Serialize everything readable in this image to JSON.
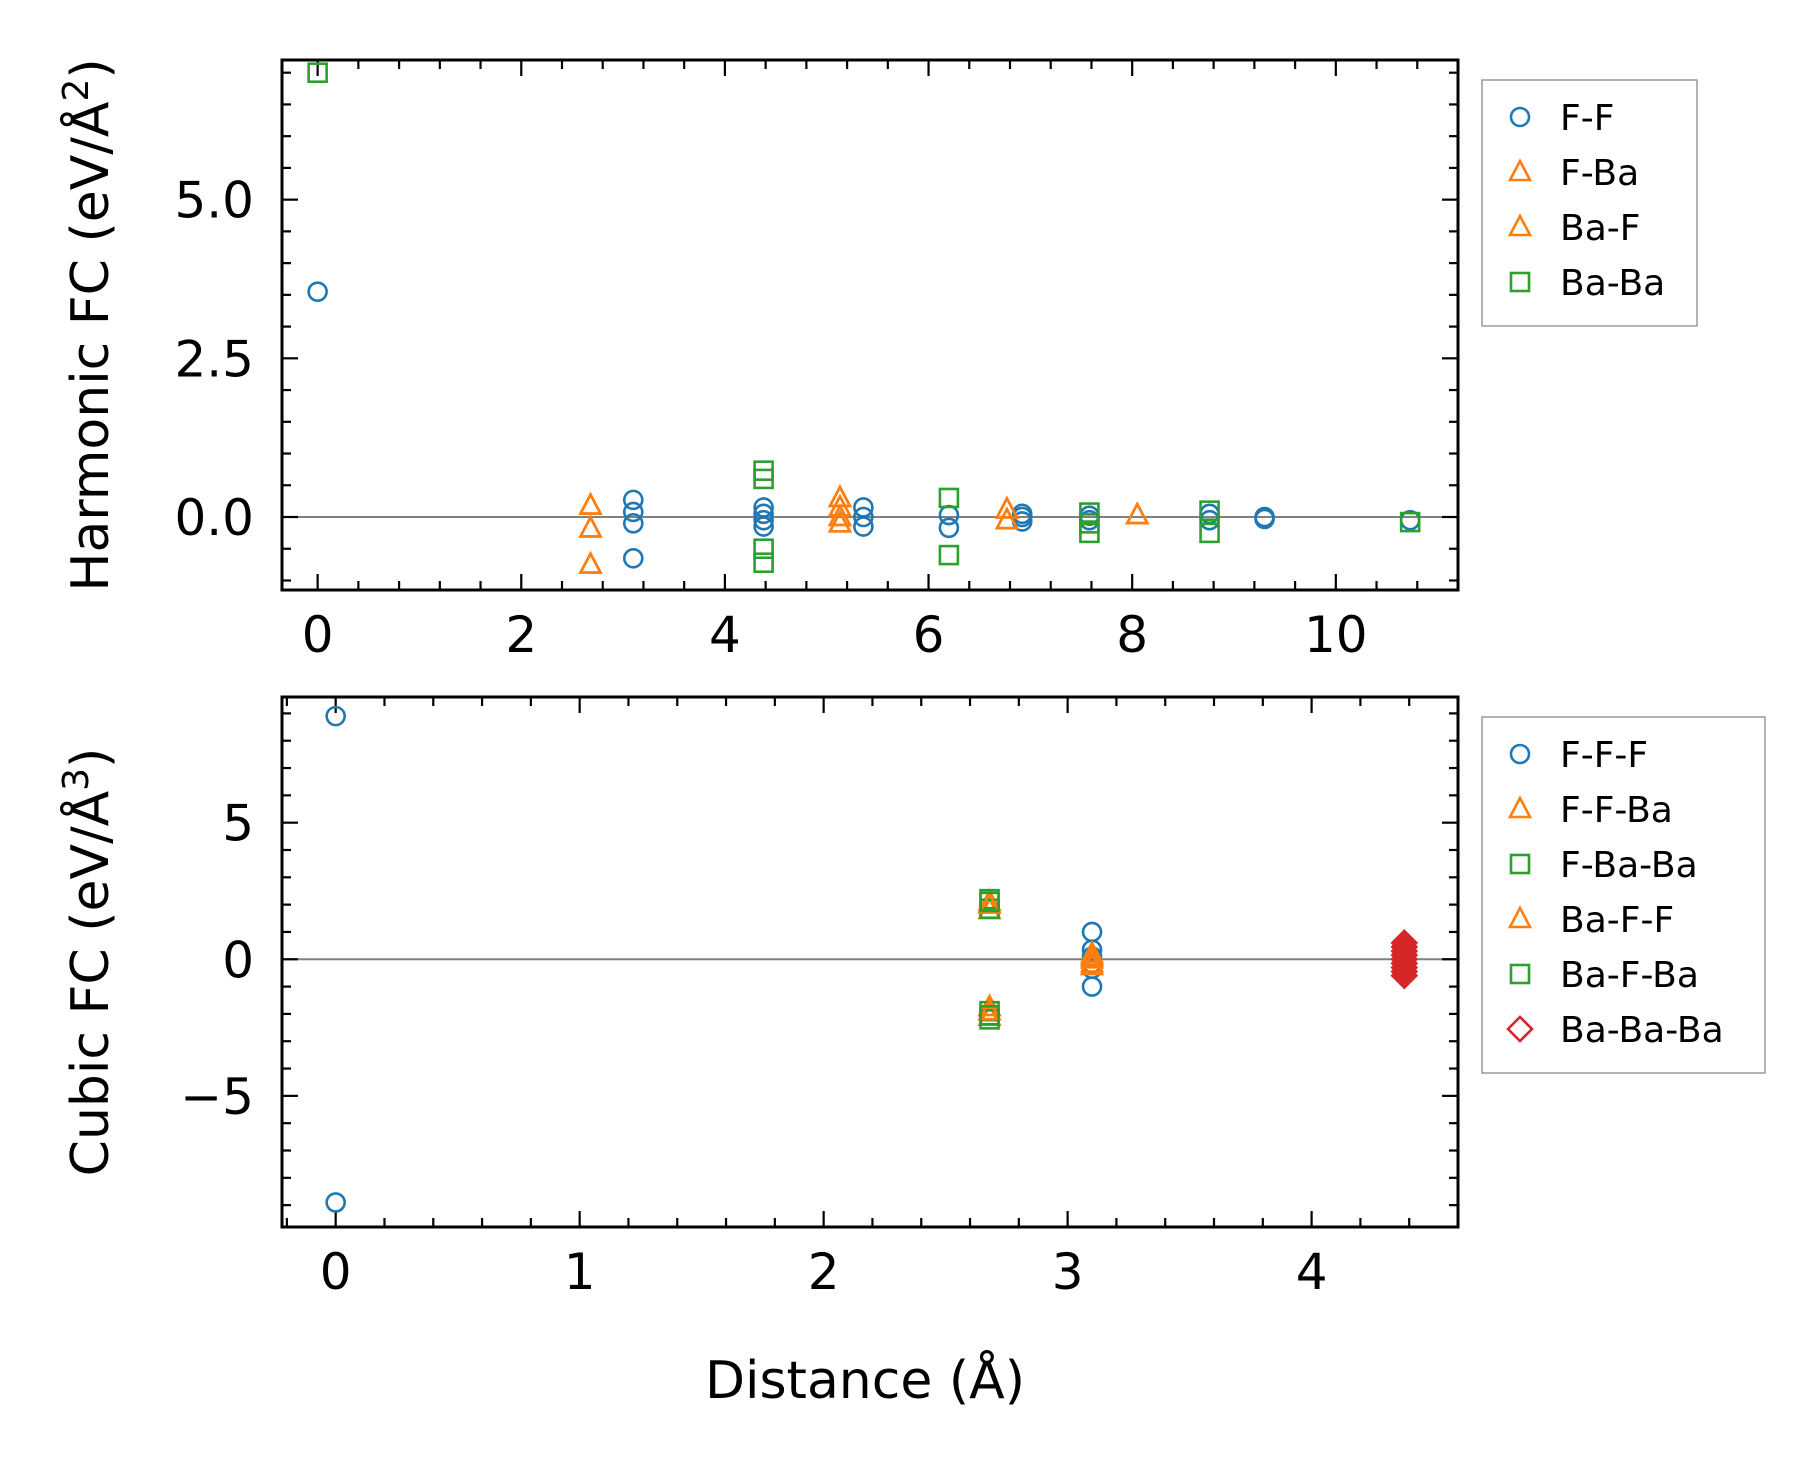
{
  "colors": {
    "blue": "#1f77b4",
    "orange": "#ff7f0e",
    "green": "#2ca02c",
    "red": "#d62728"
  },
  "figure_xlabel": "Distance (Å)",
  "chart_data": [
    {
      "type": "scatter",
      "ylabel_main": "Harmonic FC (eV/Å",
      "ylabel_sup": "2",
      "ylabel_close": ")",
      "xlim": [
        -0.35,
        11.2
      ],
      "ylim": [
        -1.15,
        7.2
      ],
      "xticks": [
        0,
        2,
        4,
        6,
        8,
        10
      ],
      "xtick_labels": [
        "0",
        "2",
        "4",
        "6",
        "8",
        "10"
      ],
      "yticks": [
        0,
        2.5,
        5
      ],
      "ytick_labels": [
        "0.0",
        "2.5",
        "5.0"
      ],
      "zero_line": true,
      "legend_position": "outside-right",
      "series": [
        {
          "name": "F-F",
          "marker": "circle",
          "color": "#1f77b4",
          "points": [
            [
              0,
              3.55
            ],
            [
              3.1,
              0.27
            ],
            [
              3.1,
              0.08
            ],
            [
              3.1,
              -0.1
            ],
            [
              3.1,
              -0.65
            ],
            [
              4.38,
              0.15
            ],
            [
              4.38,
              0.05
            ],
            [
              4.38,
              -0.05
            ],
            [
              4.38,
              -0.15
            ],
            [
              5.36,
              0.15
            ],
            [
              5.36,
              0.0
            ],
            [
              5.36,
              -0.15
            ],
            [
              6.2,
              0.03
            ],
            [
              6.2,
              -0.17
            ],
            [
              6.92,
              0.05
            ],
            [
              6.92,
              0.0
            ],
            [
              6.92,
              -0.07
            ],
            [
              7.58,
              0.02
            ],
            [
              7.58,
              -0.05
            ],
            [
              8.76,
              0.05
            ],
            [
              8.76,
              -0.05
            ],
            [
              9.3,
              0.0
            ],
            [
              9.3,
              -0.03
            ],
            [
              10.73,
              -0.05
            ]
          ]
        },
        {
          "name": "F-Ba",
          "marker": "triangle",
          "color": "#ff7f0e",
          "points": [
            [
              2.68,
              0.18
            ],
            [
              2.68,
              -0.18
            ],
            [
              2.68,
              -0.75
            ],
            [
              5.13,
              0.3
            ],
            [
              5.13,
              0.15
            ],
            [
              5.13,
              0.0
            ],
            [
              5.13,
              -0.1
            ],
            [
              6.77,
              0.12
            ],
            [
              6.77,
              -0.05
            ],
            [
              8.05,
              0.03
            ]
          ]
        },
        {
          "name": "Ba-F",
          "marker": "triangle",
          "color": "#ff7f0e",
          "points": [
            [
              2.68,
              0.18
            ],
            [
              2.68,
              -0.18
            ],
            [
              2.68,
              -0.75
            ],
            [
              5.13,
              0.3
            ],
            [
              5.13,
              0.15
            ],
            [
              5.13,
              0.0
            ],
            [
              5.13,
              -0.1
            ],
            [
              6.77,
              0.12
            ],
            [
              6.77,
              -0.05
            ],
            [
              8.05,
              0.03
            ]
          ]
        },
        {
          "name": "Ba-Ba",
          "marker": "square",
          "color": "#2ca02c",
          "points": [
            [
              0,
              7.0
            ],
            [
              4.38,
              0.73
            ],
            [
              4.38,
              0.6
            ],
            [
              4.38,
              -0.5
            ],
            [
              4.38,
              -0.72
            ],
            [
              6.2,
              0.3
            ],
            [
              6.2,
              -0.6
            ],
            [
              7.58,
              0.07
            ],
            [
              7.58,
              -0.1
            ],
            [
              7.58,
              -0.25
            ],
            [
              8.76,
              0.1
            ],
            [
              8.76,
              -0.25
            ],
            [
              10.73,
              -0.08
            ]
          ]
        }
      ]
    },
    {
      "type": "scatter",
      "ylabel_main": "Cubic FC (eV/Å",
      "ylabel_sup": "3",
      "ylabel_close": ")",
      "xlabel": "Distance (Å)",
      "xlim": [
        -0.22,
        4.6
      ],
      "ylim": [
        -9.8,
        9.6
      ],
      "xticks": [
        0,
        1,
        2,
        3,
        4
      ],
      "xtick_labels": [
        "0",
        "1",
        "2",
        "3",
        "4"
      ],
      "yticks": [
        -5,
        0,
        5
      ],
      "ytick_labels": [
        "−5",
        "0",
        "5"
      ],
      "zero_line": true,
      "legend_position": "outside-right",
      "series": [
        {
          "name": "F-F-F",
          "marker": "circle",
          "color": "#1f77b4",
          "points": [
            [
              0,
              8.9
            ],
            [
              0,
              -8.9
            ],
            [
              3.1,
              1.0
            ],
            [
              3.1,
              0.35
            ],
            [
              3.1,
              0.1
            ],
            [
              3.1,
              -0.15
            ],
            [
              3.1,
              -0.35
            ],
            [
              3.1,
              -1.0
            ]
          ]
        },
        {
          "name": "F-F-Ba",
          "marker": "triangle",
          "color": "#ff7f0e",
          "points": [
            [
              2.68,
              2.1
            ],
            [
              2.68,
              1.8
            ],
            [
              2.68,
              -1.75
            ],
            [
              2.68,
              -2.1
            ],
            [
              3.1,
              0.2
            ],
            [
              3.1,
              0.0
            ],
            [
              3.1,
              -0.25
            ]
          ]
        },
        {
          "name": "F-Ba-Ba",
          "marker": "square",
          "color": "#2ca02c",
          "points": [
            [
              2.68,
              2.2
            ],
            [
              2.68,
              1.85
            ],
            [
              2.68,
              -1.9
            ],
            [
              2.68,
              -2.2
            ]
          ]
        },
        {
          "name": "Ba-F-F",
          "marker": "triangle",
          "color": "#ff7f0e",
          "points": [
            [
              2.68,
              2.0
            ],
            [
              2.68,
              -1.9
            ],
            [
              3.1,
              0.1
            ],
            [
              3.1,
              -0.15
            ]
          ]
        },
        {
          "name": "Ba-F-Ba",
          "marker": "square",
          "color": "#2ca02c",
          "points": [
            [
              2.68,
              2.1
            ],
            [
              2.68,
              -2.05
            ]
          ]
        },
        {
          "name": "Ba-Ba-Ba",
          "marker": "diamond",
          "color": "#d62728",
          "filled_look": true,
          "points": [
            [
              4.38,
              0.6
            ],
            [
              4.38,
              0.45
            ],
            [
              4.38,
              0.3
            ],
            [
              4.38,
              0.15
            ],
            [
              4.38,
              0.0
            ],
            [
              4.38,
              -0.15
            ],
            [
              4.38,
              -0.3
            ],
            [
              4.38,
              -0.45
            ],
            [
              4.38,
              -0.6
            ]
          ]
        }
      ]
    }
  ]
}
